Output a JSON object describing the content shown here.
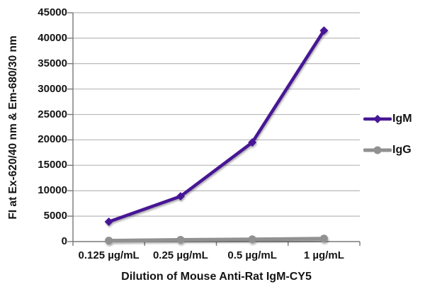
{
  "chart_data": {
    "type": "line",
    "title": "",
    "xlabel": "Dilution of Mouse Anti-Rat IgM-CY5",
    "ylabel": "FI at Ex-620/40 nm & Em-680/30 nm",
    "categories": [
      "0.125 µg/mL",
      "0.25 µg/mL",
      "0.5 µg/mL",
      "1 µg/mL"
    ],
    "series": [
      {
        "name": "IgM",
        "values": [
          3900,
          8900,
          19500,
          41500
        ],
        "color": "#471795",
        "marker": "diamond"
      },
      {
        "name": "IgG",
        "values": [
          200,
          350,
          450,
          600
        ],
        "color": "#919191",
        "marker": "circle"
      }
    ],
    "ylim": [
      0,
      45000
    ],
    "ytick_interval": 5000,
    "yticks": [
      "0",
      "5000",
      "10000",
      "15000",
      "20000",
      "25000",
      "30000",
      "35000",
      "40000",
      "45000"
    ],
    "grid": true,
    "legend_position": "right"
  },
  "colors": {
    "background": "#ffffff",
    "gridline": "#b8b8b8",
    "axis": "#787878",
    "text": "#141414",
    "igm": "#471795",
    "igg": "#919191"
  }
}
